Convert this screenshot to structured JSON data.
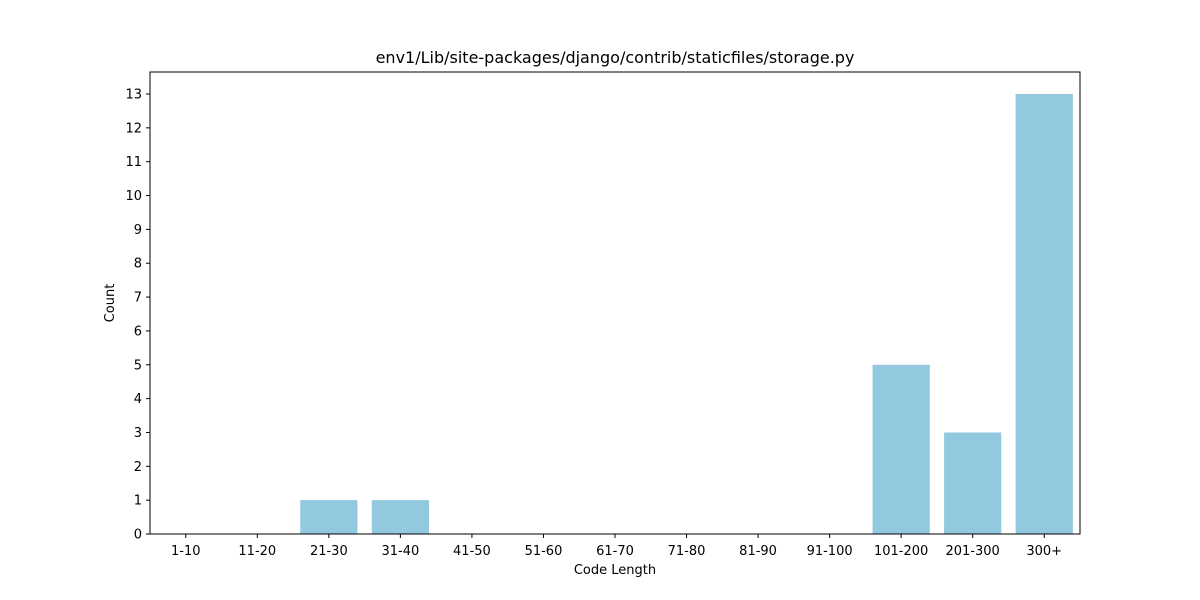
{
  "chart_data": {
    "type": "bar",
    "title": "env1/Lib/site-packages/django/contrib/staticfiles/storage.py",
    "xlabel": "Code Length",
    "ylabel": "Count",
    "categories": [
      "1-10",
      "11-20",
      "21-30",
      "31-40",
      "41-50",
      "51-60",
      "61-70",
      "71-80",
      "81-90",
      "91-100",
      "101-200",
      "201-300",
      "300+"
    ],
    "values": [
      0,
      0,
      1,
      1,
      0,
      0,
      0,
      0,
      0,
      0,
      5,
      3,
      13
    ],
    "ylim": [
      0,
      13.65
    ],
    "yticks": [
      0,
      1,
      2,
      3,
      4,
      5,
      6,
      7,
      8,
      9,
      10,
      11,
      12,
      13
    ],
    "bar_color": "#92c9df",
    "grid": false,
    "legend": "none"
  }
}
